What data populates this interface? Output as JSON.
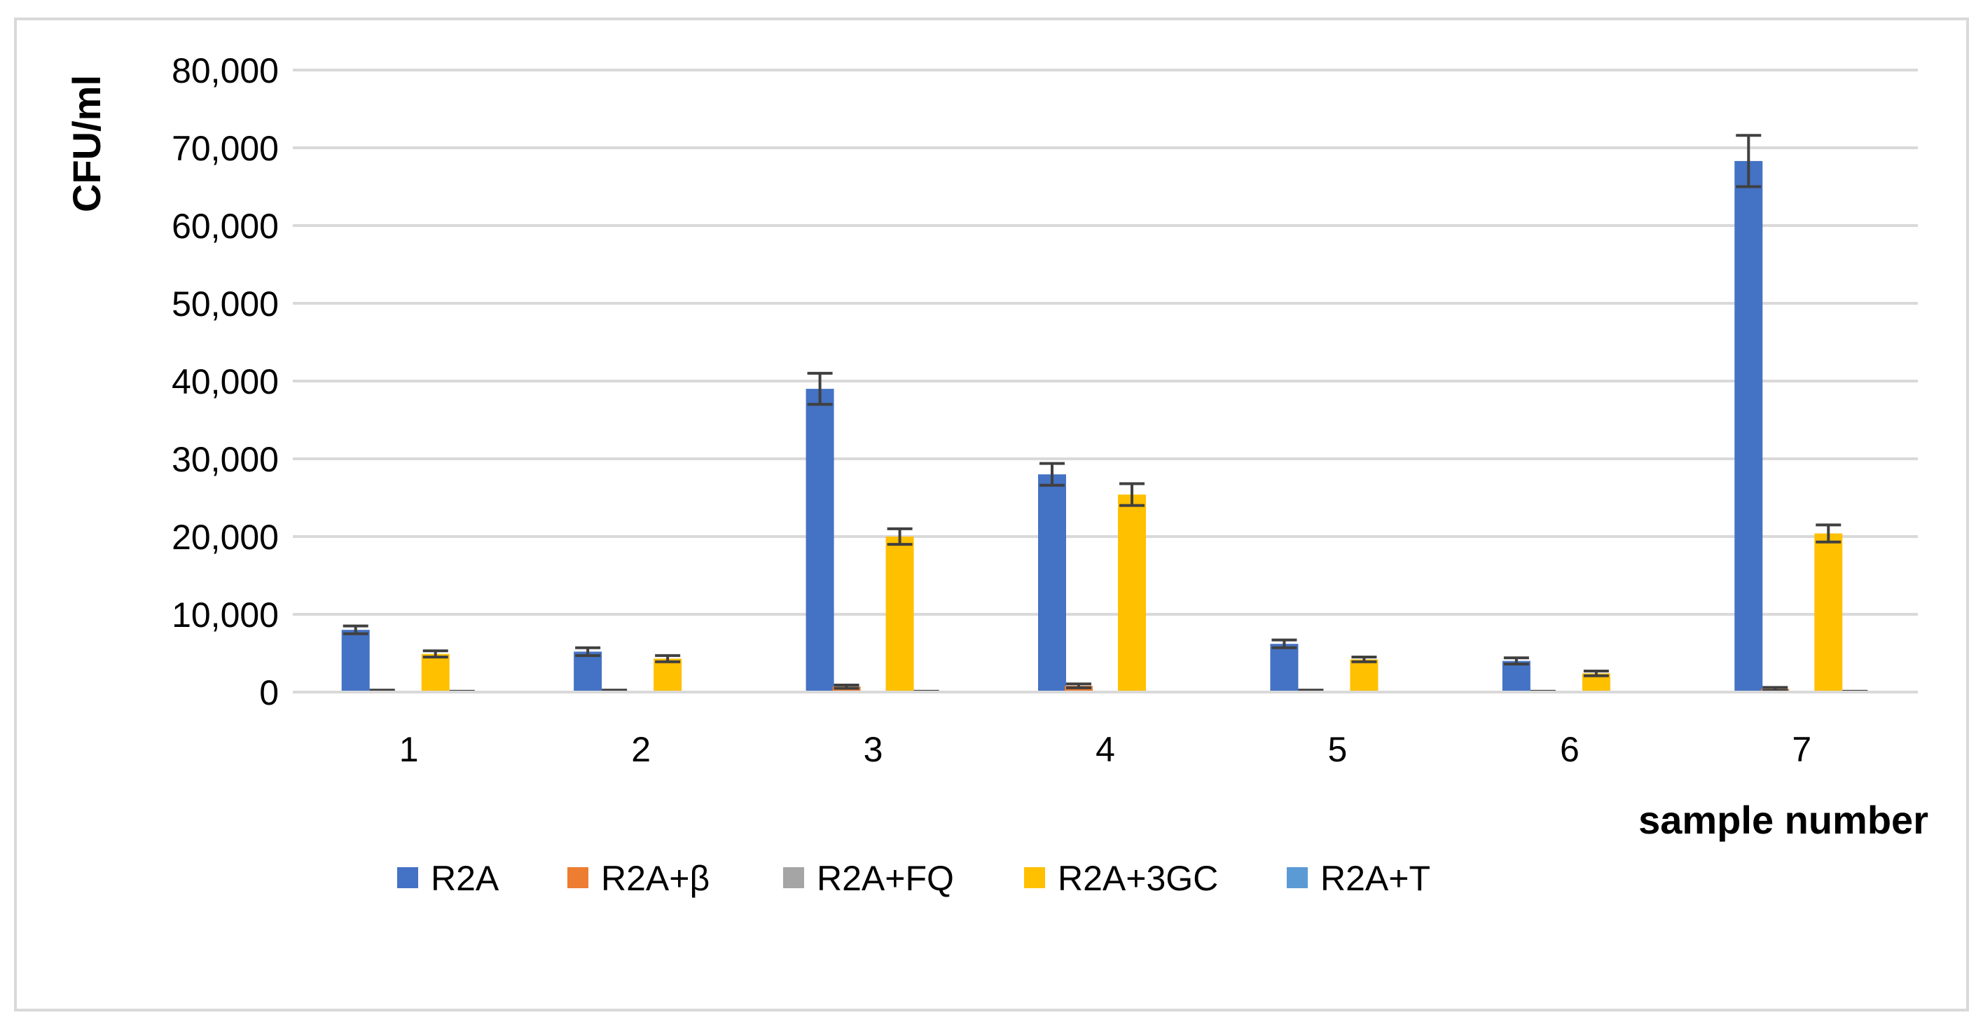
{
  "chart_data": {
    "type": "bar",
    "title": "",
    "xlabel": "sample number",
    "ylabel": "CFU/ml",
    "ylim": [
      0,
      80000
    ],
    "y_ticks": [
      0,
      10000,
      20000,
      30000,
      40000,
      50000,
      60000,
      70000,
      80000
    ],
    "y_tick_labels": [
      "0",
      "10,000",
      "20,000",
      "30,000",
      "40,000",
      "50,000",
      "60,000",
      "70,000",
      "80,000"
    ],
    "grid": true,
    "legend_position": "bottom",
    "categories": [
      "1",
      "2",
      "3",
      "4",
      "5",
      "6",
      "7"
    ],
    "series": [
      {
        "name": "R2A",
        "color": "#4472C4",
        "values": [
          8000,
          5200,
          39000,
          28000,
          6200,
          4000,
          68300
        ],
        "errors": [
          500,
          500,
          2000,
          1400,
          500,
          400,
          3300
        ]
      },
      {
        "name": "R2A+β",
        "color": "#ED7D31",
        "values": [
          150,
          150,
          700,
          800,
          150,
          50,
          400
        ],
        "errors": [
          100,
          100,
          200,
          250,
          100,
          50,
          200
        ]
      },
      {
        "name": "R2A+FQ",
        "color": "#A5A5A5",
        "values": [
          0,
          0,
          0,
          0,
          0,
          0,
          0
        ],
        "errors": [
          0,
          0,
          0,
          0,
          0,
          0,
          0
        ]
      },
      {
        "name": "R2A+3GC",
        "color": "#FFC000",
        "values": [
          4900,
          4300,
          20000,
          25400,
          4200,
          2400,
          20400
        ],
        "errors": [
          400,
          400,
          1000,
          1400,
          300,
          300,
          1100
        ]
      },
      {
        "name": "R2A+T",
        "color": "#5B9BD5",
        "values": [
          50,
          0,
          50,
          0,
          0,
          0,
          50
        ],
        "errors": [
          50,
          0,
          50,
          0,
          0,
          0,
          50
        ]
      }
    ]
  }
}
